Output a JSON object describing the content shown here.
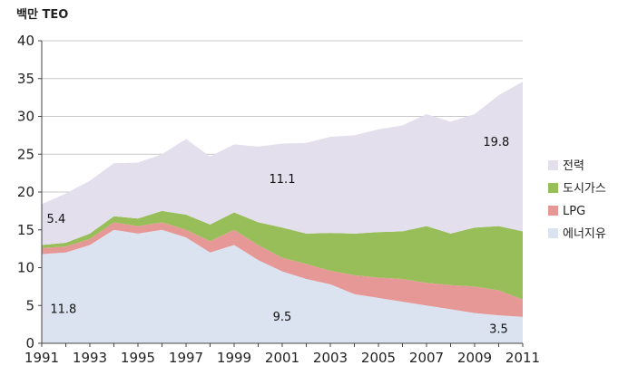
{
  "chart_data": {
    "type": "area",
    "stacked": true,
    "unit_label": "백만 TEO",
    "x": [
      1991,
      1992,
      1993,
      1994,
      1995,
      1996,
      1997,
      1998,
      1999,
      2000,
      2001,
      2002,
      2003,
      2004,
      2005,
      2006,
      2007,
      2008,
      2009,
      2010,
      2011
    ],
    "x_tick_labels": [
      "1991",
      "1993",
      "1995",
      "1997",
      "1999",
      "2001",
      "2003",
      "2005",
      "2007",
      "2009",
      "2011"
    ],
    "ylim": [
      0,
      40
    ],
    "y_tick_labels": [
      "0",
      "5",
      "10",
      "15",
      "20",
      "25",
      "30",
      "35",
      "40"
    ],
    "grid": true,
    "legend_position": "right",
    "series": [
      {
        "name": "에너지유",
        "color": "#dbe3f1",
        "values": [
          11.8,
          12.0,
          13.0,
          15.0,
          14.5,
          15.0,
          14.0,
          12.0,
          13.0,
          11.0,
          9.5,
          8.5,
          7.8,
          6.5,
          6.0,
          5.5,
          5.0,
          4.5,
          4.0,
          3.7,
          3.5
        ]
      },
      {
        "name": "LPG",
        "color": "#e69896",
        "values": [
          0.8,
          0.8,
          0.8,
          1.0,
          1.0,
          1.0,
          1.0,
          1.5,
          2.0,
          2.0,
          1.8,
          2.0,
          1.8,
          2.5,
          2.7,
          3.0,
          3.0,
          3.2,
          3.5,
          3.3,
          2.3
        ]
      },
      {
        "name": "도시가스",
        "color": "#97be59",
        "values": [
          0.4,
          0.5,
          0.7,
          0.8,
          1.0,
          1.5,
          2.0,
          2.2,
          2.3,
          3.0,
          4.0,
          4.0,
          5.0,
          5.5,
          6.0,
          6.3,
          7.5,
          6.8,
          7.8,
          8.5,
          9.0
        ]
      },
      {
        "name": "전력",
        "color": "#e4dfed",
        "values": [
          5.4,
          6.5,
          7.0,
          7.0,
          7.4,
          7.5,
          10.0,
          9.0,
          9.0,
          10.0,
          11.1,
          12.0,
          12.7,
          13.0,
          13.6,
          14.0,
          14.8,
          14.8,
          15.0,
          17.3,
          19.8
        ]
      }
    ],
    "annotations": [
      {
        "text": "11.8",
        "x": 1991.9,
        "y": 4.0
      },
      {
        "text": "5.4",
        "x": 1991.6,
        "y": 15.9
      },
      {
        "text": "11.1",
        "x": 2001.0,
        "y": 21.2
      },
      {
        "text": "9.5",
        "x": 2001.0,
        "y": 3.0
      },
      {
        "text": "19.8",
        "x": 2009.9,
        "y": 26.1
      },
      {
        "text": "3.5",
        "x": 2010.0,
        "y": 1.4
      }
    ]
  }
}
